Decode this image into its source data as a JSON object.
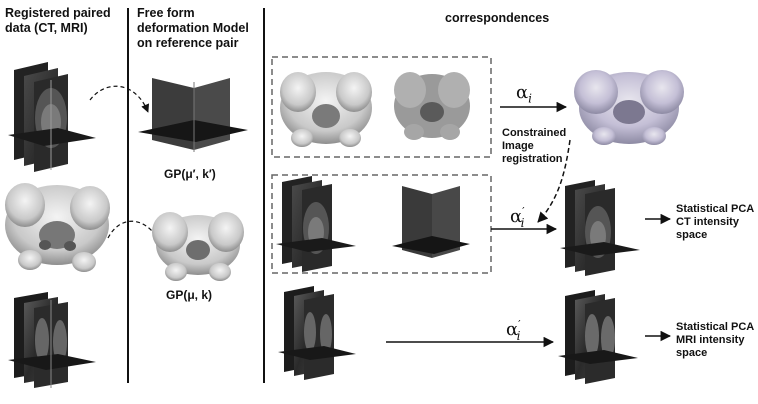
{
  "headers": {
    "col1": [
      "Registered paired",
      "data (CT, MRI)"
    ],
    "col2": [
      "Free form",
      "deformation Model",
      "on reference pair"
    ],
    "col3": "correspondences"
  },
  "labels": {
    "gp_prime": "GP(μ′, k′)",
    "gp": "GP(μ, k)",
    "alpha_i": "α",
    "alpha_sub": "i",
    "alpha_prime_sup": "′",
    "constrained": [
      "Constrained",
      "Image",
      "registration"
    ],
    "pca_ct": [
      "Statistical PCA",
      "CT intensity",
      "space"
    ],
    "pca_mri": [
      "Statistical PCA",
      "MRI intensity",
      "space"
    ]
  },
  "icons": [
    "ct-volume-icon",
    "mri-volume-icon",
    "pelvis-bone-icon",
    "deformation-field-icon"
  ]
}
